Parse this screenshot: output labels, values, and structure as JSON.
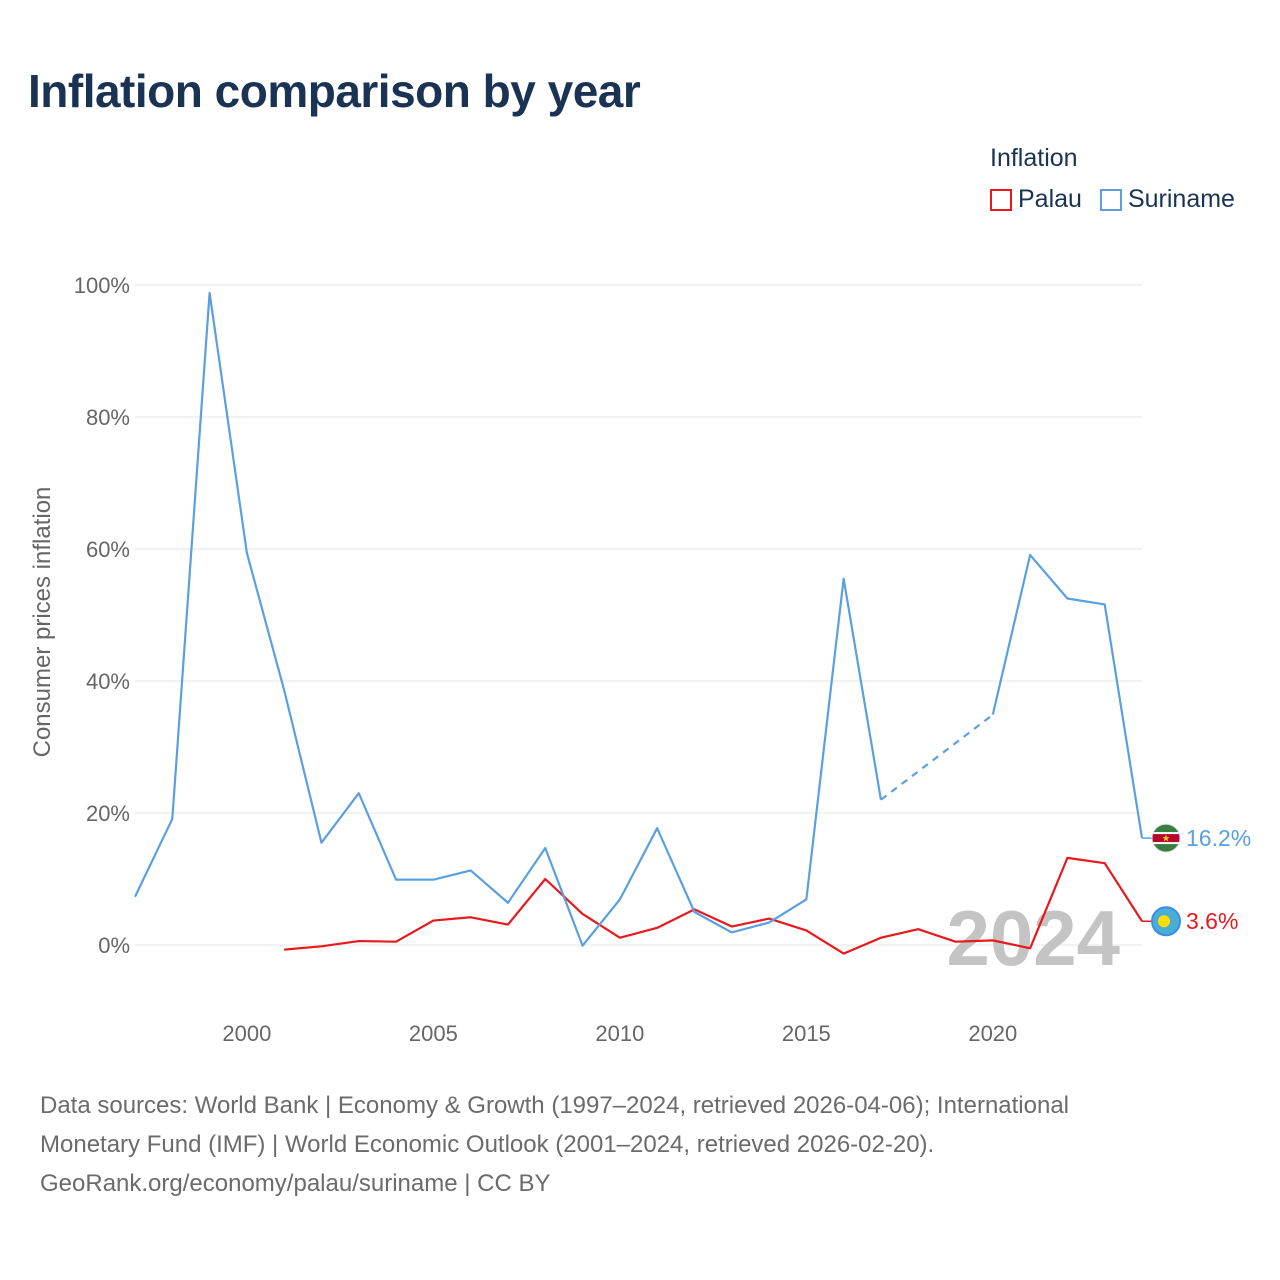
{
  "chart_data": {
    "type": "line",
    "title": "Inflation comparison by year",
    "legend_title": "Inflation",
    "legend_position": "top-right",
    "ylabel": "Consumer prices inflation",
    "xlabel": "",
    "xlim": [
      1997,
      2024
    ],
    "ylim": [
      -10,
      100
    ],
    "y_ticks": [
      "0%",
      "20%",
      "40%",
      "60%",
      "80%",
      "100%"
    ],
    "x_ticks": [
      "2000",
      "2005",
      "2010",
      "2015",
      "2020"
    ],
    "highlight_year": "2024",
    "series": [
      {
        "name": "Palau",
        "color": "#e8191c",
        "end_label": "3.6%",
        "flag_icon": "palau-flag-icon",
        "points": [
          [
            2001,
            -0.7
          ],
          [
            2002,
            -0.2
          ],
          [
            2003,
            0.6
          ],
          [
            2004,
            0.5
          ],
          [
            2005,
            3.7
          ],
          [
            2006,
            4.2
          ],
          [
            2007,
            3.1
          ],
          [
            2008,
            10.0
          ],
          [
            2009,
            4.7
          ],
          [
            2010,
            1.1
          ],
          [
            2011,
            2.6
          ],
          [
            2012,
            5.4
          ],
          [
            2013,
            2.8
          ],
          [
            2014,
            4.0
          ],
          [
            2015,
            2.2
          ],
          [
            2016,
            -1.3
          ],
          [
            2017,
            1.1
          ],
          [
            2018,
            2.4
          ],
          [
            2019,
            0.5
          ],
          [
            2020,
            0.7
          ],
          [
            2021,
            -0.5
          ],
          [
            2022,
            13.2
          ],
          [
            2023,
            12.4
          ],
          [
            2024,
            3.6
          ]
        ]
      },
      {
        "name": "Suriname",
        "color": "#5aa0e0",
        "end_label": "16.2%",
        "flag_icon": "suriname-flag-icon",
        "points": [
          [
            1997,
            7.3
          ],
          [
            1998,
            19.1
          ],
          [
            1999,
            98.8
          ],
          [
            2000,
            59.4
          ],
          [
            2001,
            38.6
          ],
          [
            2002,
            15.5
          ],
          [
            2003,
            23.0
          ],
          [
            2004,
            9.9
          ],
          [
            2005,
            9.9
          ],
          [
            2006,
            11.3
          ],
          [
            2007,
            6.4
          ],
          [
            2008,
            14.7
          ],
          [
            2009,
            -0.1
          ],
          [
            2010,
            6.9
          ],
          [
            2011,
            17.7
          ],
          [
            2012,
            5.0
          ],
          [
            2013,
            1.9
          ],
          [
            2014,
            3.4
          ],
          [
            2015,
            6.9
          ],
          [
            2016,
            55.5
          ],
          [
            2017,
            22.0
          ],
          [
            2020,
            34.9
          ],
          [
            2021,
            59.1
          ],
          [
            2022,
            52.5
          ],
          [
            2023,
            51.6
          ],
          [
            2024,
            16.2
          ]
        ],
        "gaps_dashed": [
          [
            2017,
            2020
          ]
        ]
      }
    ]
  },
  "sources": {
    "line1": "Data sources: World Bank | Economy & Growth (1997–2024, retrieved 2026-04-06); International",
    "line2": "Monetary Fund (IMF) | World Economic Outlook (2001–2024, retrieved 2026-02-20).",
    "line3": "GeoRank.org/economy/palau/suriname | CC BY"
  }
}
